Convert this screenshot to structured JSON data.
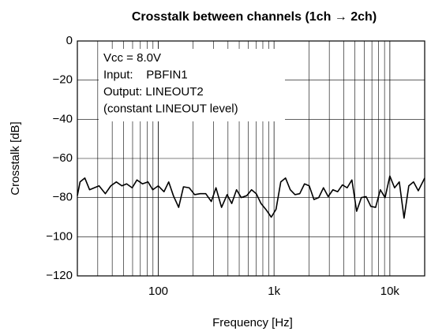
{
  "chart_data": {
    "type": "line",
    "title": "Crosstalk between channels (1ch → 2ch)",
    "xlabel": "Frequency [Hz]",
    "ylabel": "Crosstalk [dB]",
    "annotations": [
      "Vcc = 8.0V",
      "Input:    PBFIN1",
      "Output: LINEOUT2",
      "(constant LINEOUT level)"
    ],
    "x": [
      20,
      21.1,
      23.2,
      25.5,
      28,
      30.8,
      34.9,
      38.9,
      43.4,
      48.5,
      53.3,
      59.5,
      65.4,
      73,
      81.5,
      89.6,
      100,
      112,
      123,
      135,
      150,
      165,
      185,
      206,
      230,
      257,
      287,
      315,
      352,
      393,
      431,
      474,
      521,
      582,
      639,
      702,
      771,
      861,
      946,
      1040,
      1143,
      1256,
      1380,
      1517,
      1667,
      1832,
      2013,
      2212,
      2431,
      2671,
      2935,
      3225,
      3544,
      3894,
      4279,
      4702,
      5167,
      5678,
      6239,
      6856,
      7534,
      8279,
      9097,
      10000,
      10990,
      12070,
      13270,
      14580,
      16020,
      17610,
      20000
    ],
    "values": [
      -79,
      -72,
      -70,
      -76,
      -75,
      -74,
      -78,
      -74,
      -72,
      -74,
      -73,
      -75,
      -71,
      -73,
      -72,
      -76,
      -74,
      -77,
      -72,
      -79,
      -85,
      -74.5,
      -75,
      -78.5,
      -78,
      -78,
      -82,
      -75,
      -85,
      -78.5,
      -83,
      -76,
      -80,
      -79,
      -76,
      -78,
      -83,
      -86.5,
      -90,
      -86,
      -72,
      -70,
      -76,
      -78.5,
      -78,
      -73,
      -74,
      -81,
      -80,
      -75,
      -79.5,
      -76,
      -77,
      -73.5,
      -75,
      -71,
      -87,
      -80,
      -79.5,
      -84.5,
      -85,
      -76,
      -80,
      -69,
      -75,
      -72,
      -90.5,
      -74,
      -72,
      -76.5,
      -70
    ],
    "color": "#000000",
    "xscale": "log",
    "xlim": [
      20,
      20000
    ],
    "xticks": [
      100,
      {
        "value": 1000,
        "label": "1k"
      },
      {
        "value": 10000,
        "label": "10k"
      }
    ],
    "ylim": [
      -120,
      0
    ],
    "yticks": [
      {
        "value": -120,
        "label": "−120"
      },
      {
        "value": -100,
        "label": "−100"
      },
      {
        "value": -80,
        "label": "−80"
      },
      {
        "value": -60,
        "label": "−60"
      },
      {
        "value": -40,
        "label": "−40"
      },
      {
        "value": -20,
        "label": "−20"
      },
      0
    ],
    "grid": true
  }
}
